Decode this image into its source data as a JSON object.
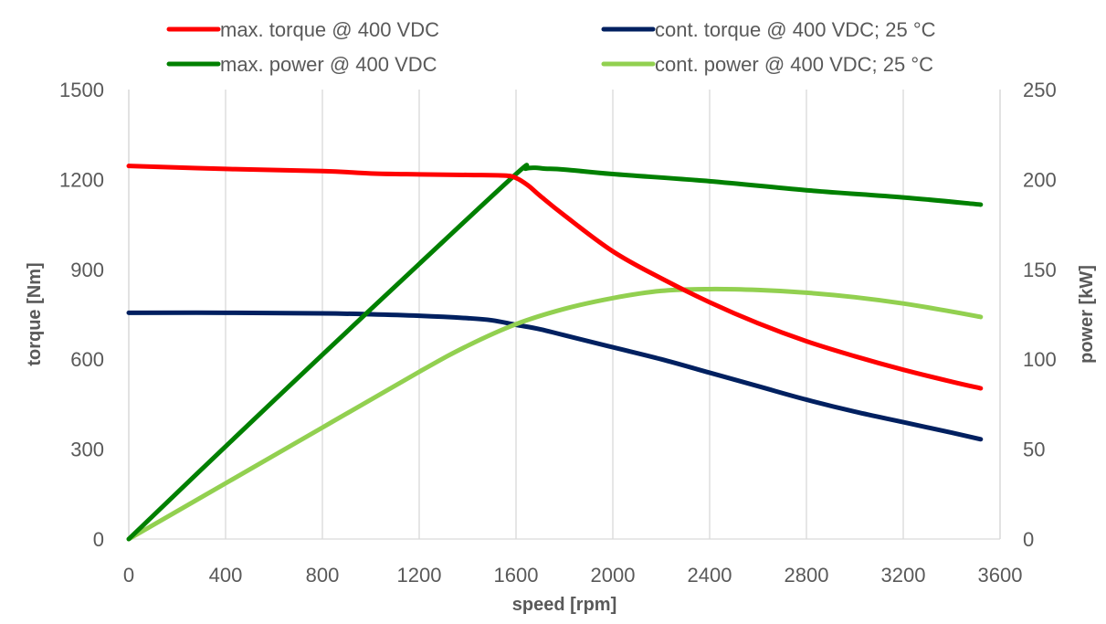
{
  "chart_data": {
    "type": "line",
    "xlabel": "speed [rpm]",
    "ylabel": "torque [Nm]",
    "y2label": "power [kW]",
    "xlim": [
      0,
      3600
    ],
    "ylim": [
      0,
      1500
    ],
    "y2lim": [
      0,
      250
    ],
    "xticks": [
      "0",
      "400",
      "800",
      "1200",
      "1600",
      "2000",
      "2400",
      "2800",
      "3200",
      "3600"
    ],
    "yticks": [
      "0",
      "300",
      "600",
      "900",
      "1200",
      "1500"
    ],
    "y2ticks": [
      "0",
      "50",
      "100",
      "150",
      "200",
      "250"
    ],
    "grid": "vertical",
    "legend_position": "top",
    "series": [
      {
        "name": "max. torque @ 400 VDC",
        "axis": "left",
        "color": "#ff0000",
        "x": [
          0,
          400,
          800,
          1000,
          1200,
          1400,
          1550,
          1600,
          1650,
          1700,
          1800,
          2000,
          2200,
          2400,
          2600,
          2800,
          3000,
          3200,
          3400,
          3520
        ],
        "y": [
          1245,
          1235,
          1228,
          1220,
          1217,
          1215,
          1213,
          1205,
          1180,
          1145,
          1080,
          960,
          870,
          790,
          720,
          660,
          610,
          565,
          525,
          503
        ]
      },
      {
        "name": "cont. torque @ 400 VDC; 25 °C",
        "axis": "left",
        "color": "#002060",
        "x": [
          0,
          400,
          800,
          1000,
          1200,
          1400,
          1500,
          1600,
          1700,
          1800,
          2000,
          2200,
          2400,
          2600,
          2800,
          3000,
          3200,
          3400,
          3520
        ],
        "y": [
          755,
          755,
          753,
          750,
          745,
          737,
          730,
          715,
          700,
          680,
          640,
          600,
          555,
          510,
          465,
          425,
          390,
          355,
          333
        ]
      },
      {
        "name": "max. power @ 400 VDC",
        "axis": "right",
        "color": "#008000",
        "x": [
          0,
          400,
          800,
          1200,
          1600,
          1640,
          1680,
          1720,
          1800,
          2000,
          2400,
          2800,
          3200,
          3520
        ],
        "y": [
          0,
          51.5,
          102.5,
          153,
          203,
          206,
          206.5,
          206,
          205.5,
          203,
          199,
          194,
          190,
          186
        ]
      },
      {
        "name": "cont. power @ 400 VDC; 25 °C",
        "axis": "right",
        "color": "#92d050",
        "x": [
          0,
          400,
          800,
          1200,
          1400,
          1600,
          1800,
          2000,
          2200,
          2400,
          2600,
          2800,
          3000,
          3200,
          3400,
          3520
        ],
        "y": [
          0,
          31,
          62,
          93,
          107.5,
          119.5,
          128,
          134,
          138,
          139,
          138.5,
          137,
          134.5,
          131,
          126.5,
          123.5
        ]
      }
    ]
  }
}
